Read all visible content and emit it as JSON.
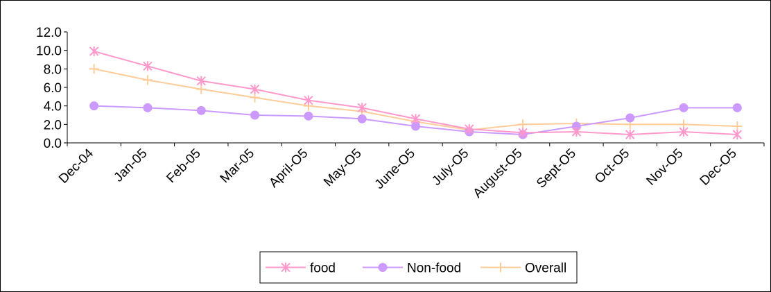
{
  "chart_data": {
    "type": "line",
    "title": "",
    "xlabel": "",
    "ylabel": "",
    "categories": [
      "Dec-04",
      "Jan-05",
      "Feb-05",
      "Mar-05",
      "April-O5",
      "May-O5",
      "June-O5",
      "July-O5",
      "August-O5",
      "Sept-O5",
      "Oct-O5",
      "Nov-O5",
      "Dec-O5"
    ],
    "ylim": [
      0,
      12
    ],
    "yticks": [
      "0.0",
      "2.0",
      "4.0",
      "6.0",
      "8.0",
      "10.0",
      "12.0"
    ],
    "grid": false,
    "legend_position": "bottom",
    "series": [
      {
        "name": "food",
        "marker": "asterisk",
        "color": "#ff99cc",
        "values": [
          9.9,
          8.3,
          6.7,
          5.8,
          4.6,
          3.8,
          2.6,
          1.5,
          1.1,
          1.2,
          0.9,
          1.2,
          0.9
        ]
      },
      {
        "name": "Non-food",
        "marker": "circle",
        "color": "#cc99ff",
        "values": [
          4.0,
          3.8,
          3.5,
          3.0,
          2.9,
          2.6,
          1.8,
          1.2,
          0.9,
          1.8,
          2.7,
          3.8,
          3.8
        ]
      },
      {
        "name": "Overall",
        "marker": "plus",
        "color": "#ffcc99",
        "values": [
          8.0,
          6.8,
          5.8,
          4.9,
          4.0,
          3.4,
          2.3,
          1.4,
          2.0,
          2.1,
          2.0,
          2.0,
          1.8
        ]
      }
    ]
  }
}
